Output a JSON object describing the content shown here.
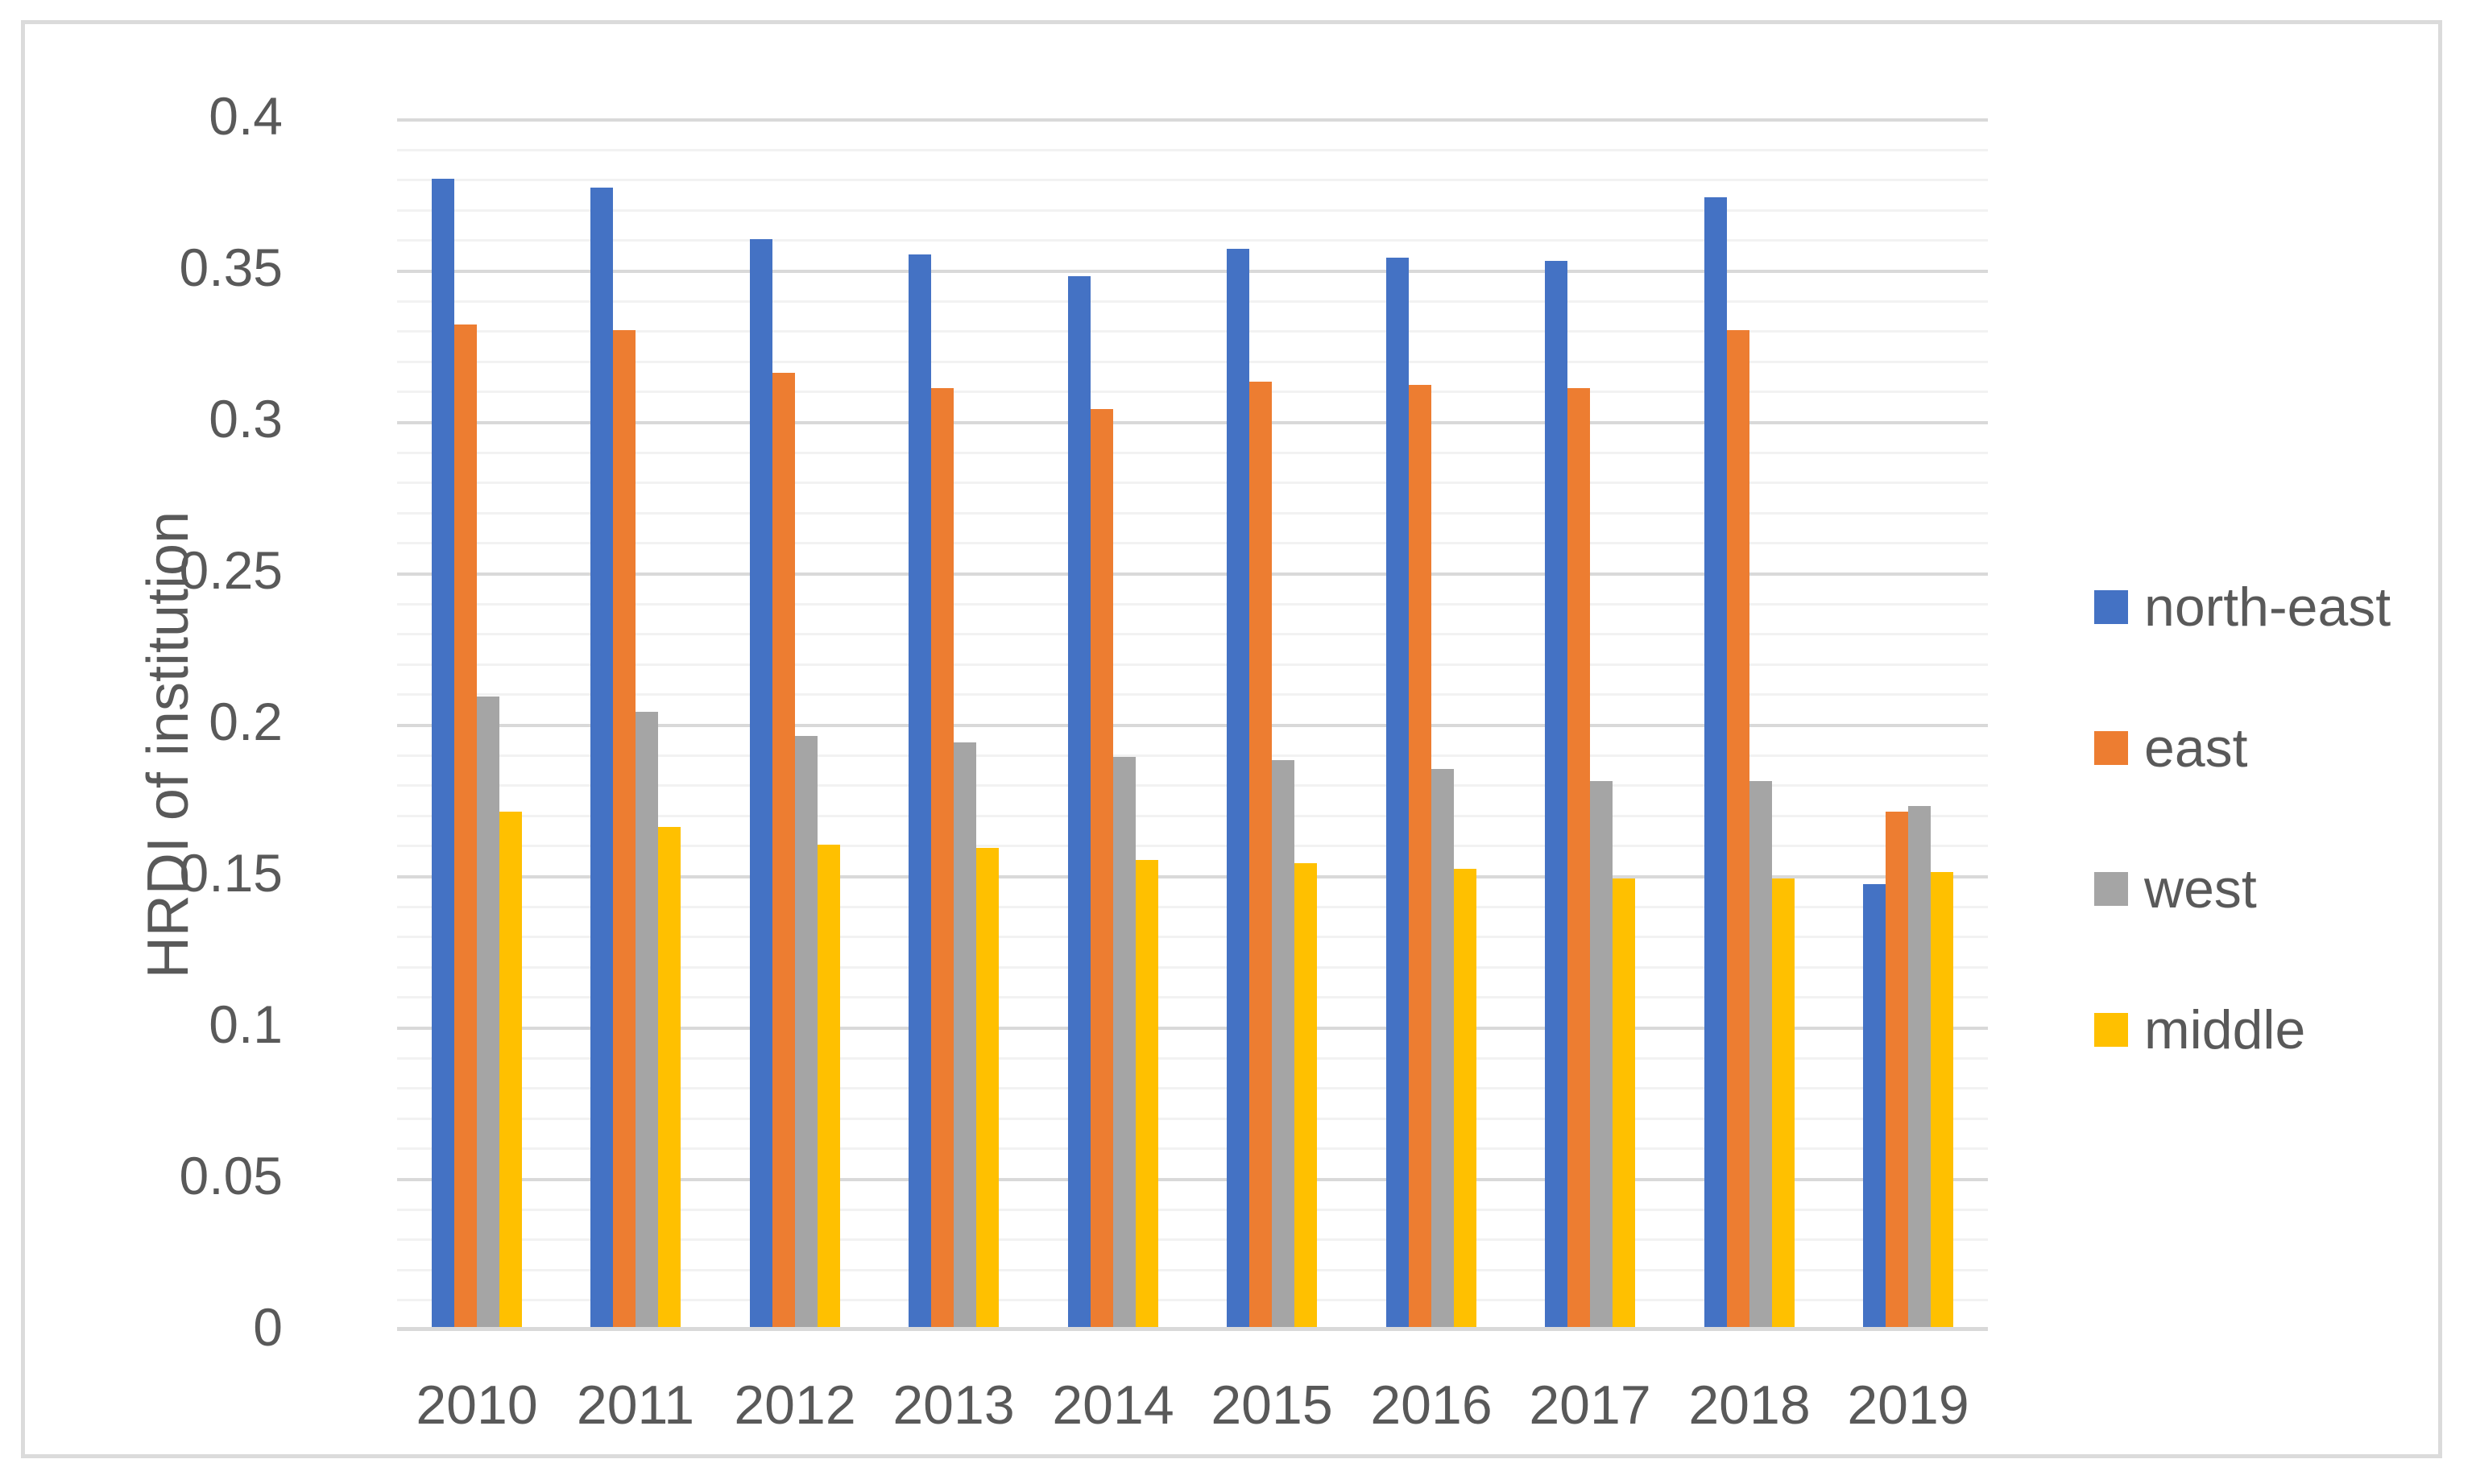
{
  "chart_data": {
    "type": "bar",
    "title": "",
    "xlabel": "",
    "ylabel": "HRDI of institution",
    "categories": [
      "2010",
      "2011",
      "2012",
      "2013",
      "2014",
      "2015",
      "2016",
      "2017",
      "2018",
      "2019"
    ],
    "series": [
      {
        "name": "north-east",
        "color": "#4472C4",
        "values": [
          0.38,
          0.377,
          0.36,
          0.355,
          0.348,
          0.357,
          0.354,
          0.353,
          0.374,
          0.147
        ]
      },
      {
        "name": "east",
        "color": "#ED7D31",
        "values": [
          0.332,
          0.33,
          0.316,
          0.311,
          0.304,
          0.313,
          0.312,
          0.311,
          0.33,
          0.171
        ]
      },
      {
        "name": "west",
        "color": "#A5A5A5",
        "values": [
          0.209,
          0.204,
          0.196,
          0.194,
          0.189,
          0.188,
          0.185,
          0.181,
          0.181,
          0.173
        ]
      },
      {
        "name": "middle",
        "color": "#FFC000",
        "values": [
          0.171,
          0.166,
          0.16,
          0.159,
          0.155,
          0.154,
          0.152,
          0.149,
          0.149,
          0.151
        ]
      }
    ],
    "ylim": [
      0,
      0.4
    ],
    "y_ticks": [
      {
        "label": "0",
        "value": 0.0
      },
      {
        "label": "0.05",
        "value": 0.05
      },
      {
        "label": "0.1",
        "value": 0.1
      },
      {
        "label": "0.15",
        "value": 0.15
      },
      {
        "label": "0.2",
        "value": 0.2
      },
      {
        "label": "0.25",
        "value": 0.25
      },
      {
        "label": "0.3",
        "value": 0.3
      },
      {
        "label": "0.35",
        "value": 0.35
      },
      {
        "label": "0.4",
        "value": 0.4
      }
    ],
    "minor_grid_interval": 0.01,
    "major_grid_interval": 0.05,
    "grid": true,
    "legend_position": "right"
  },
  "colors": {
    "grid_minor": "#F2F2F2",
    "grid_major": "#D9D9D9",
    "axis_line": "#D9D9D9",
    "text": "#595959",
    "frame_border": "#DBDBDB",
    "background": "#FFFFFF"
  }
}
